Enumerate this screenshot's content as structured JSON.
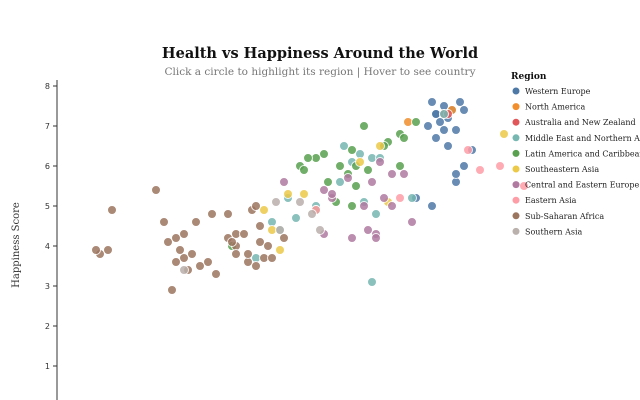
{
  "chart_data": {
    "type": "scatter",
    "title": "Health vs Happiness Around the World",
    "subtitle": "Click a circle to highlight its region | Hover to see country",
    "ylabel": "Happiness Score",
    "xlabel": "",
    "ylim": [
      0,
      8
    ],
    "y_ticks": [
      "1",
      "2",
      "3",
      "4",
      "5",
      "6",
      "7",
      "8"
    ],
    "xlim": [
      0.0,
      1.3
    ],
    "legend": {
      "title": "Region",
      "position": "top-right",
      "items": [
        {
          "name": "Western Europe",
          "color": "#4e79a7"
        },
        {
          "name": "North America",
          "color": "#f28e2b"
        },
        {
          "name": "Australia and New Zealand",
          "color": "#e15759"
        },
        {
          "name": "Middle East and Northern Africa",
          "color": "#76b7b2"
        },
        {
          "name": "Latin America and Caribbean",
          "color": "#59a14f"
        },
        {
          "name": "Southeastern Asia",
          "color": "#edc948"
        },
        {
          "name": "Central and Eastern Europe",
          "color": "#b07aa1"
        },
        {
          "name": "Eastern Asia",
          "color": "#ff9da7"
        },
        {
          "name": "Sub-Saharan Africa",
          "color": "#9c755f"
        },
        {
          "name": "Southern Asia",
          "color": "#bab0ac"
        }
      ]
    },
    "series": [
      {
        "name": "Western Europe",
        "points": [
          [
            0.99,
            7.6
          ],
          [
            1.02,
            7.5
          ],
          [
            1.06,
            7.6
          ],
          [
            1.04,
            7.4
          ],
          [
            1.0,
            7.3
          ],
          [
            1.07,
            7.4
          ],
          [
            1.03,
            7.2
          ],
          [
            1.01,
            7.1
          ],
          [
            0.98,
            7.0
          ],
          [
            1.02,
            6.9
          ],
          [
            1.05,
            6.9
          ],
          [
            1.0,
            6.7
          ],
          [
            1.03,
            6.5
          ],
          [
            0.95,
            5.2
          ],
          [
            0.99,
            5.0
          ],
          [
            1.05,
            5.6
          ],
          [
            1.05,
            5.8
          ],
          [
            1.07,
            6.0
          ],
          [
            1.09,
            6.4
          ],
          [
            1.0,
            7.3
          ]
        ]
      },
      {
        "name": "North America",
        "points": [
          [
            1.04,
            7.4
          ],
          [
            0.93,
            7.1
          ]
        ]
      },
      {
        "name": "Australia and New Zealand",
        "points": [
          [
            1.02,
            7.3
          ],
          [
            1.03,
            7.3
          ]
        ]
      },
      {
        "name": "Middle East and Northern Africa",
        "points": [
          [
            1.02,
            7.3
          ],
          [
            0.81,
            6.3
          ],
          [
            0.84,
            6.2
          ],
          [
            0.86,
            6.2
          ],
          [
            0.79,
            6.1
          ],
          [
            0.76,
            5.6
          ],
          [
            0.82,
            5.1
          ],
          [
            0.85,
            4.8
          ],
          [
            0.63,
            5.2
          ],
          [
            0.7,
            5.0
          ],
          [
            0.65,
            4.7
          ],
          [
            0.61,
            4.4
          ],
          [
            0.59,
            4.6
          ],
          [
            0.55,
            3.7
          ],
          [
            0.84,
            3.1
          ],
          [
            0.77,
            6.5
          ],
          [
            0.94,
            5.2
          ]
        ]
      },
      {
        "name": "Latin America and Caribbean",
        "points": [
          [
            0.82,
            7.0
          ],
          [
            0.95,
            7.1
          ],
          [
            0.91,
            6.8
          ],
          [
            0.92,
            6.7
          ],
          [
            0.88,
            6.6
          ],
          [
            0.87,
            6.5
          ],
          [
            0.79,
            6.4
          ],
          [
            0.72,
            6.3
          ],
          [
            0.7,
            6.2
          ],
          [
            0.66,
            6.0
          ],
          [
            0.76,
            6.0
          ],
          [
            0.8,
            6.0
          ],
          [
            0.91,
            6.0
          ],
          [
            0.83,
            5.9
          ],
          [
            0.78,
            5.8
          ],
          [
            0.73,
            5.6
          ],
          [
            0.8,
            5.5
          ],
          [
            0.75,
            5.1
          ],
          [
            0.79,
            5.0
          ],
          [
            0.7,
            4.9
          ],
          [
            0.49,
            4.0
          ],
          [
            0.68,
            6.2
          ],
          [
            0.67,
            5.9
          ]
        ]
      },
      {
        "name": "Southeastern Asia",
        "points": [
          [
            1.17,
            6.8
          ],
          [
            0.86,
            6.5
          ],
          [
            0.81,
            6.1
          ],
          [
            0.67,
            5.3
          ],
          [
            0.63,
            5.3
          ],
          [
            0.57,
            4.9
          ],
          [
            0.88,
            5.1
          ],
          [
            0.59,
            4.4
          ],
          [
            0.61,
            3.9
          ]
        ]
      },
      {
        "name": "Central and Eastern Europe",
        "points": [
          [
            0.86,
            6.1
          ],
          [
            0.89,
            5.8
          ],
          [
            0.92,
            5.8
          ],
          [
            0.62,
            5.6
          ],
          [
            0.72,
            5.4
          ],
          [
            0.74,
            5.2
          ],
          [
            0.78,
            5.7
          ],
          [
            0.84,
            5.6
          ],
          [
            0.87,
            5.2
          ],
          [
            0.82,
            5.0
          ],
          [
            0.89,
            5.0
          ],
          [
            0.94,
            4.6
          ],
          [
            0.85,
            4.3
          ],
          [
            0.79,
            4.2
          ],
          [
            0.72,
            4.3
          ],
          [
            0.85,
            4.2
          ],
          [
            0.83,
            4.4
          ],
          [
            0.74,
            5.3
          ]
        ]
      },
      {
        "name": "Eastern Asia",
        "points": [
          [
            1.11,
            5.9
          ],
          [
            1.22,
            5.5
          ],
          [
            1.08,
            6.4
          ],
          [
            1.16,
            6.0
          ],
          [
            0.91,
            5.2
          ],
          [
            0.7,
            4.9
          ]
        ]
      },
      {
        "name": "Sub-Saharan Africa",
        "points": [
          [
            0.16,
            3.8
          ],
          [
            0.15,
            3.9
          ],
          [
            0.18,
            3.9
          ],
          [
            0.19,
            4.9
          ],
          [
            0.3,
            5.4
          ],
          [
            0.32,
            4.6
          ],
          [
            0.33,
            4.1
          ],
          [
            0.35,
            4.2
          ],
          [
            0.37,
            3.7
          ],
          [
            0.39,
            3.8
          ],
          [
            0.41,
            3.5
          ],
          [
            0.43,
            3.6
          ],
          [
            0.38,
            3.4
          ],
          [
            0.34,
            2.9
          ],
          [
            0.45,
            3.3
          ],
          [
            0.48,
            4.2
          ],
          [
            0.5,
            4.3
          ],
          [
            0.5,
            4.0
          ],
          [
            0.53,
            3.6
          ],
          [
            0.55,
            3.5
          ],
          [
            0.56,
            4.1
          ],
          [
            0.57,
            3.7
          ],
          [
            0.59,
            3.7
          ],
          [
            0.62,
            4.2
          ],
          [
            0.56,
            4.5
          ],
          [
            0.48,
            4.8
          ],
          [
            0.37,
            4.3
          ],
          [
            0.4,
            4.6
          ],
          [
            0.44,
            4.8
          ],
          [
            0.54,
            4.9
          ],
          [
            0.52,
            4.3
          ],
          [
            0.55,
            5.0
          ],
          [
            0.58,
            4.0
          ],
          [
            0.36,
            3.9
          ],
          [
            0.35,
            3.6
          ],
          [
            0.49,
            4.1
          ],
          [
            0.5,
            3.8
          ],
          [
            0.53,
            3.8
          ]
        ]
      },
      {
        "name": "Southern Asia",
        "points": [
          [
            0.37,
            3.4
          ],
          [
            0.61,
            4.4
          ],
          [
            0.69,
            4.8
          ],
          [
            0.71,
            4.4
          ],
          [
            0.66,
            5.1
          ],
          [
            0.6,
            5.1
          ]
        ]
      }
    ]
  }
}
